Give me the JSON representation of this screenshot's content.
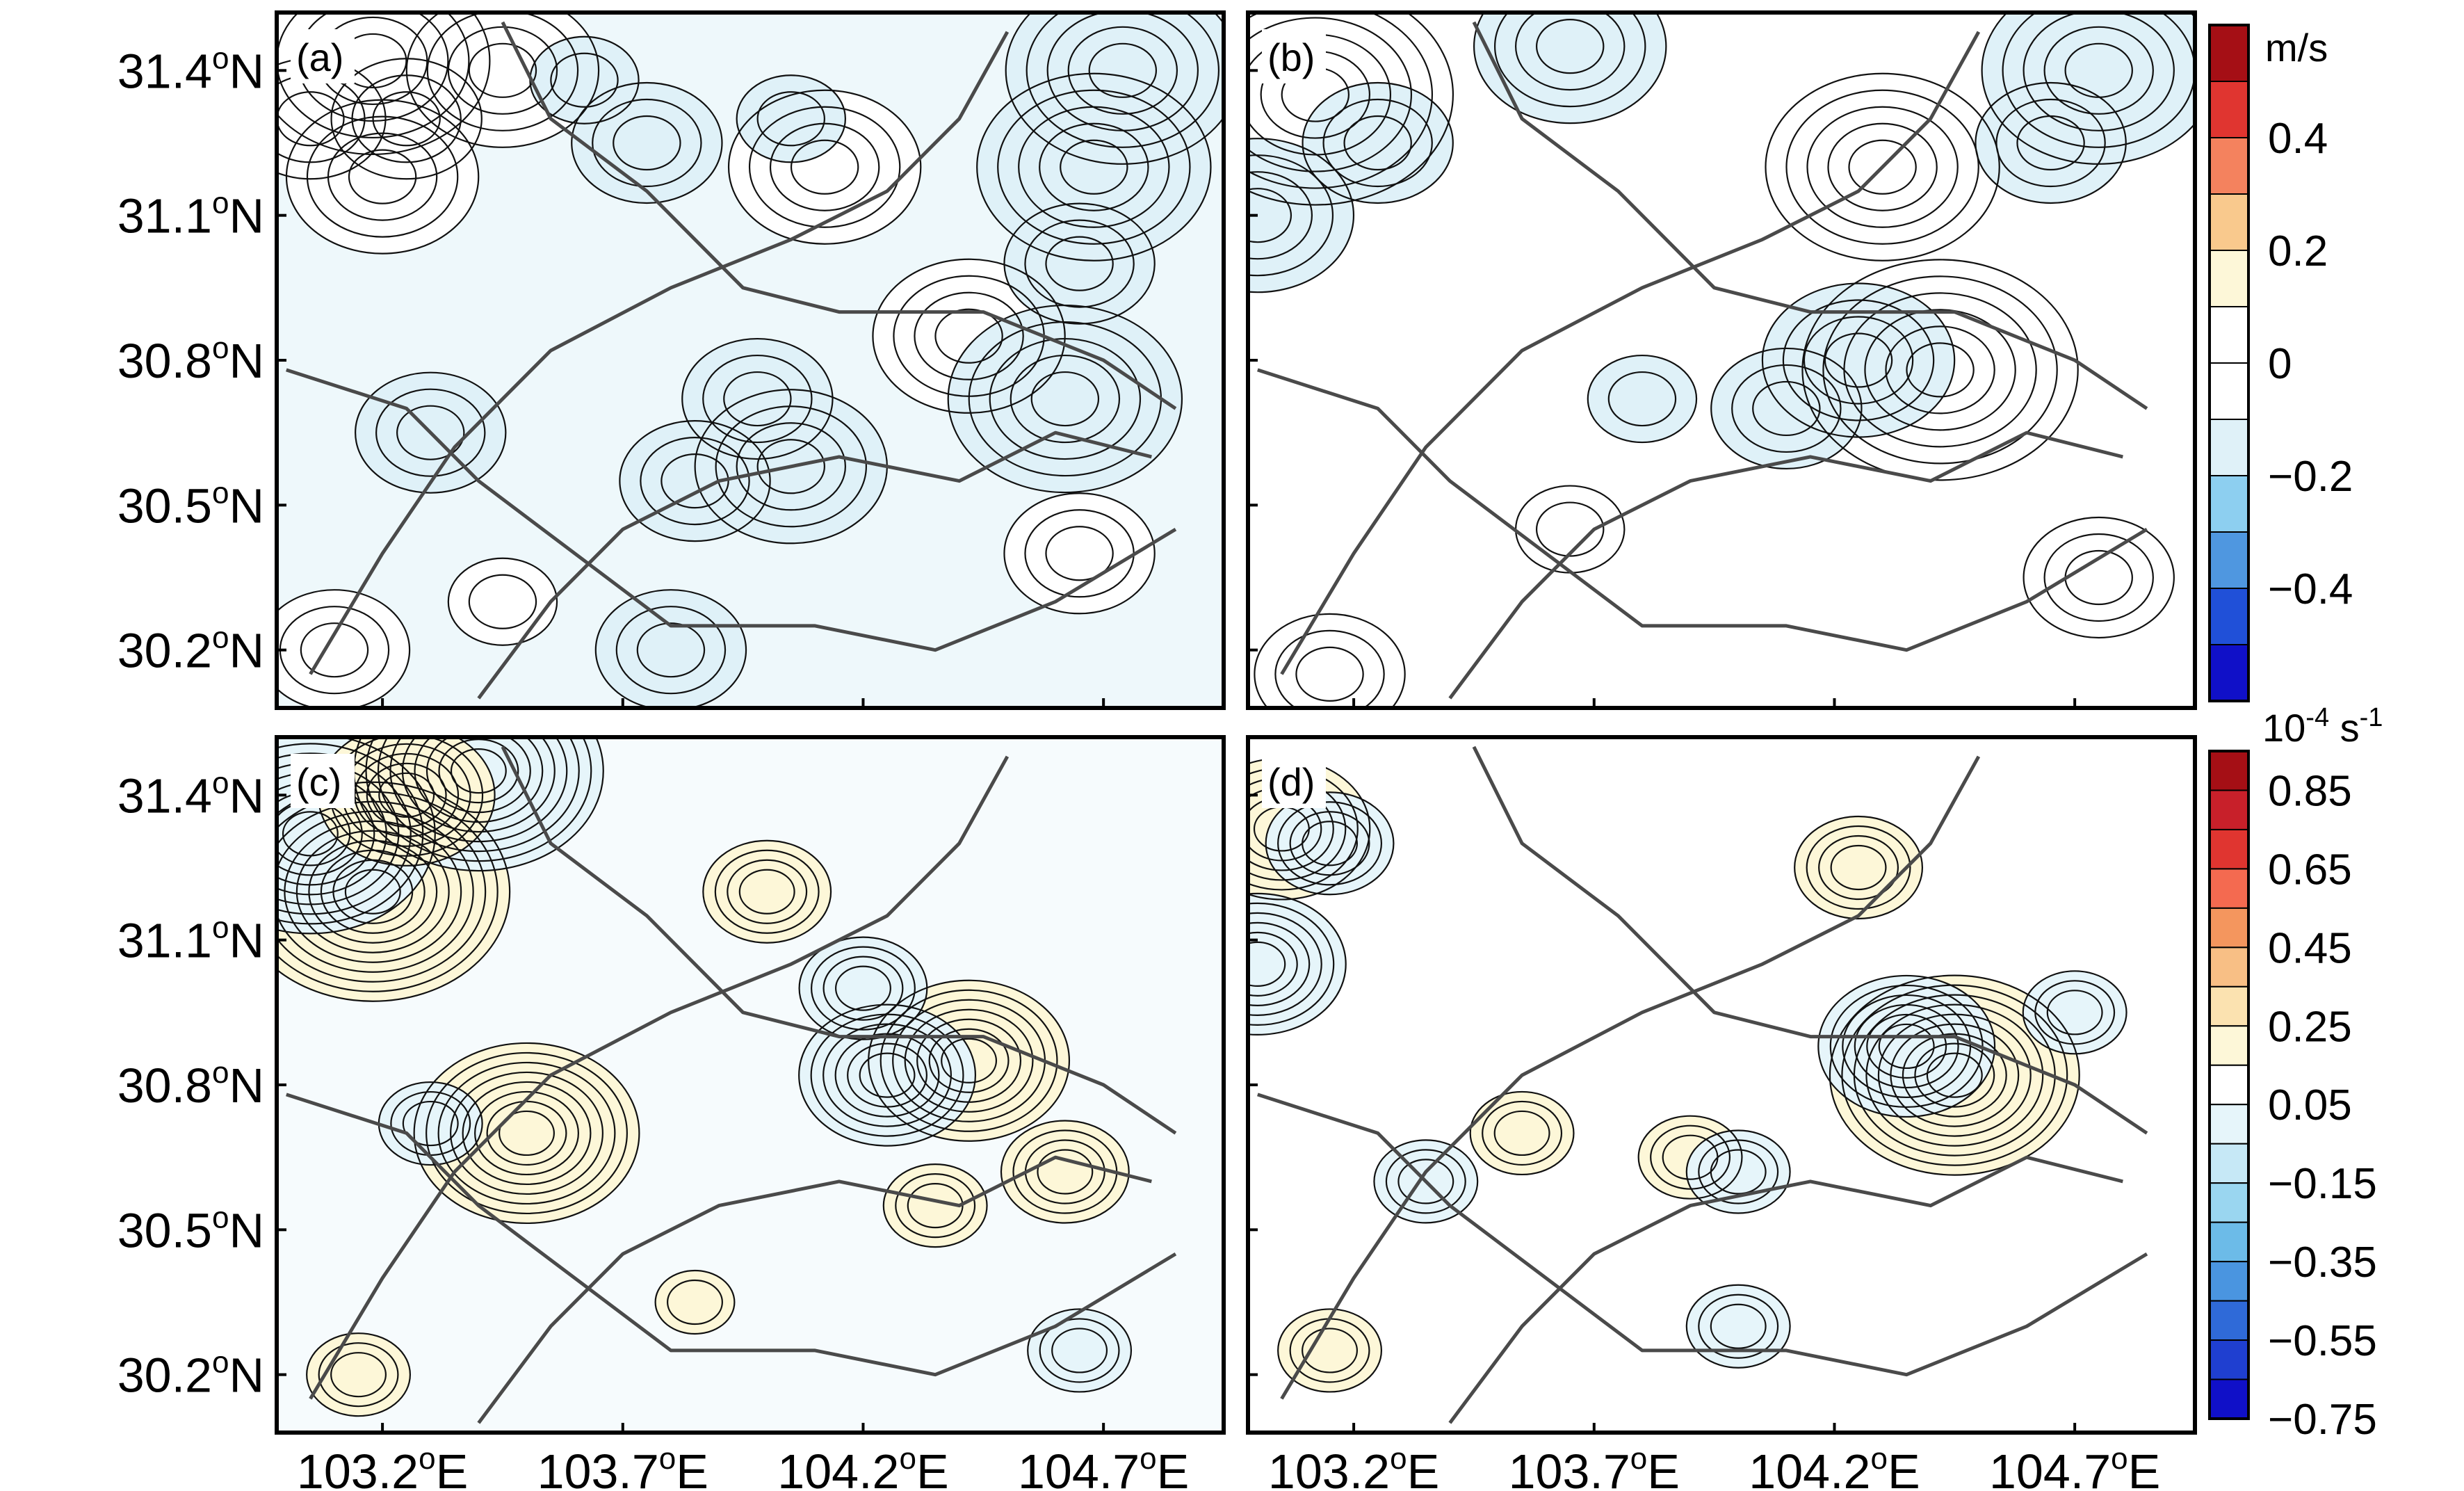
{
  "chart_data": [
    {
      "type": "heatmap",
      "panel": "(a)",
      "colorbar": "wind",
      "blobs": [
        {
          "lon": 103.18,
          "lat": 31.42,
          "value": 0.45
        },
        {
          "lon": 103.45,
          "lat": 31.4,
          "value": 0.42
        },
        {
          "lon": 103.05,
          "lat": 31.3,
          "value": 0.25
        },
        {
          "lon": 103.25,
          "lat": 31.3,
          "value": 0.28
        },
        {
          "lon": 103.2,
          "lat": 31.18,
          "value": 0.4
        },
        {
          "lon": 104.12,
          "lat": 31.2,
          "value": 0.4
        },
        {
          "lon": 104.42,
          "lat": 30.85,
          "value": 0.42
        },
        {
          "lon": 104.62,
          "lat": 30.72,
          "value": -0.5
        },
        {
          "lon": 104.74,
          "lat": 31.4,
          "value": -0.5
        },
        {
          "lon": 104.68,
          "lat": 31.2,
          "value": -0.45
        },
        {
          "lon": 104.65,
          "lat": 31.0,
          "value": -0.35
        },
        {
          "lon": 104.05,
          "lat": 30.58,
          "value": -0.42
        },
        {
          "lon": 103.85,
          "lat": 30.55,
          "value": -0.3
        },
        {
          "lon": 103.98,
          "lat": 30.72,
          "value": -0.25
        },
        {
          "lon": 103.75,
          "lat": 31.25,
          "value": -0.25
        },
        {
          "lon": 103.62,
          "lat": 31.38,
          "value": -0.2
        },
        {
          "lon": 104.05,
          "lat": 31.3,
          "value": -0.2
        },
        {
          "lon": 103.1,
          "lat": 30.2,
          "value": 0.3
        },
        {
          "lon": 103.45,
          "lat": 30.3,
          "value": 0.22
        },
        {
          "lon": 104.65,
          "lat": 30.4,
          "value": 0.25
        },
        {
          "lon": 103.3,
          "lat": 30.65,
          "value": -0.25
        },
        {
          "lon": 103.8,
          "lat": 30.2,
          "value": -0.3
        }
      ]
    },
    {
      "type": "heatmap",
      "panel": "(b)",
      "colorbar": "wind",
      "blobs": [
        {
          "lon": 103.12,
          "lat": 31.35,
          "value": 0.55
        },
        {
          "lon": 104.3,
          "lat": 31.2,
          "value": 0.52
        },
        {
          "lon": 104.42,
          "lat": 30.78,
          "value": 0.58
        },
        {
          "lon": 103.25,
          "lat": 31.25,
          "value": -0.3
        },
        {
          "lon": 103.0,
          "lat": 31.1,
          "value": -0.42
        },
        {
          "lon": 103.65,
          "lat": 31.45,
          "value": -0.4
        },
        {
          "lon": 104.75,
          "lat": 31.4,
          "value": -0.45
        },
        {
          "lon": 104.65,
          "lat": 31.25,
          "value": -0.3
        },
        {
          "lon": 104.1,
          "lat": 30.7,
          "value": -0.35
        },
        {
          "lon": 104.25,
          "lat": 30.8,
          "value": -0.4
        },
        {
          "lon": 103.8,
          "lat": 30.72,
          "value": -0.2
        },
        {
          "lon": 103.15,
          "lat": 30.15,
          "value": 0.32
        },
        {
          "lon": 104.75,
          "lat": 30.35,
          "value": 0.25
        },
        {
          "lon": 103.65,
          "lat": 30.45,
          "value": 0.22
        }
      ]
    },
    {
      "type": "heatmap",
      "panel": "(c)",
      "colorbar": "divergence",
      "blobs": [
        {
          "lon": 103.18,
          "lat": 31.2,
          "value": 1.0
        },
        {
          "lon": 103.05,
          "lat": 31.32,
          "value": -0.9
        },
        {
          "lon": 103.4,
          "lat": 31.45,
          "value": -0.85
        },
        {
          "lon": 103.25,
          "lat": 31.4,
          "value": 0.6
        },
        {
          "lon": 103.5,
          "lat": 30.7,
          "value": 0.75
        },
        {
          "lon": 104.42,
          "lat": 30.85,
          "value": 0.7
        },
        {
          "lon": 104.0,
          "lat": 31.2,
          "value": 0.4
        },
        {
          "lon": 104.25,
          "lat": 30.82,
          "value": -0.55
        },
        {
          "lon": 104.2,
          "lat": 31.0,
          "value": -0.4
        },
        {
          "lon": 104.62,
          "lat": 30.62,
          "value": 0.4
        },
        {
          "lon": 103.3,
          "lat": 30.72,
          "value": -0.35
        },
        {
          "lon": 103.15,
          "lat": 30.2,
          "value": 0.25
        },
        {
          "lon": 103.85,
          "lat": 30.35,
          "value": 0.2
        },
        {
          "lon": 104.65,
          "lat": 30.25,
          "value": -0.25
        },
        {
          "lon": 104.35,
          "lat": 30.55,
          "value": 0.3
        }
      ]
    },
    {
      "type": "heatmap",
      "panel": "(d)",
      "colorbar": "divergence",
      "blobs": [
        {
          "lon": 104.45,
          "lat": 30.82,
          "value": 0.95
        },
        {
          "lon": 104.35,
          "lat": 30.88,
          "value": -0.55
        },
        {
          "lon": 103.05,
          "lat": 31.33,
          "value": 0.6
        },
        {
          "lon": 103.15,
          "lat": 31.3,
          "value": -0.4
        },
        {
          "lon": 103.0,
          "lat": 31.05,
          "value": -0.6
        },
        {
          "lon": 104.25,
          "lat": 31.25,
          "value": 0.4
        },
        {
          "lon": 103.9,
          "lat": 30.65,
          "value": 0.35
        },
        {
          "lon": 104.0,
          "lat": 30.62,
          "value": -0.3
        },
        {
          "lon": 103.55,
          "lat": 30.7,
          "value": 0.3
        },
        {
          "lon": 103.35,
          "lat": 30.6,
          "value": -0.35
        },
        {
          "lon": 104.7,
          "lat": 30.95,
          "value": -0.25
        },
        {
          "lon": 103.15,
          "lat": 30.25,
          "value": 0.25
        },
        {
          "lon": 104.0,
          "lat": 30.3,
          "value": -0.3
        }
      ]
    }
  ],
  "x_ticks": [
    "103.2",
    "103.7",
    "104.2",
    "104.7"
  ],
  "x_tick_values": [
    103.2,
    103.7,
    104.2,
    104.7
  ],
  "y_ticks": [
    "31.4",
    "31.1",
    "30.8",
    "30.5",
    "30.2"
  ],
  "y_tick_values": [
    31.4,
    31.1,
    30.8,
    30.5,
    30.2
  ],
  "lon_range": [
    102.98,
    104.95
  ],
  "lat_range": [
    30.08,
    31.52
  ],
  "lon_suffix": "E",
  "lat_suffix": "N",
  "degree_symbol": "o",
  "colorbar_wind": {
    "title": "m/s",
    "labels": [
      "0.4",
      "0.2",
      "0",
      "−0.2",
      "−0.4"
    ],
    "colors": [
      "#a50f15",
      "#e03530",
      "#f4825e",
      "#f9c98d",
      "#fdf7d8",
      "#ffffff",
      "#ffffff",
      "#dff1f8",
      "#8dcff0",
      "#4f97e0",
      "#2050d8",
      "#1010c8"
    ]
  },
  "colorbar_div": {
    "title_base": "10",
    "title_exp": "-4",
    "title_unit": " s",
    "title_unit_exp": "-1",
    "labels": [
      "0.85",
      "0.65",
      "0.45",
      "0.25",
      "0.05",
      "−0.15",
      "−0.35",
      "−0.55",
      "−0.75"
    ],
    "colors": [
      "#a50f15",
      "#c8202a",
      "#e03530",
      "#f46a50",
      "#f4965e",
      "#f8bf85",
      "#fbe2b0",
      "#fdf7d8",
      "#ffffff",
      "#e6f5fa",
      "#c6e8f6",
      "#9ad6f0",
      "#6cbbe8",
      "#4a95e0",
      "#2f6ad8",
      "#1f3fd0",
      "#1010c8"
    ]
  }
}
